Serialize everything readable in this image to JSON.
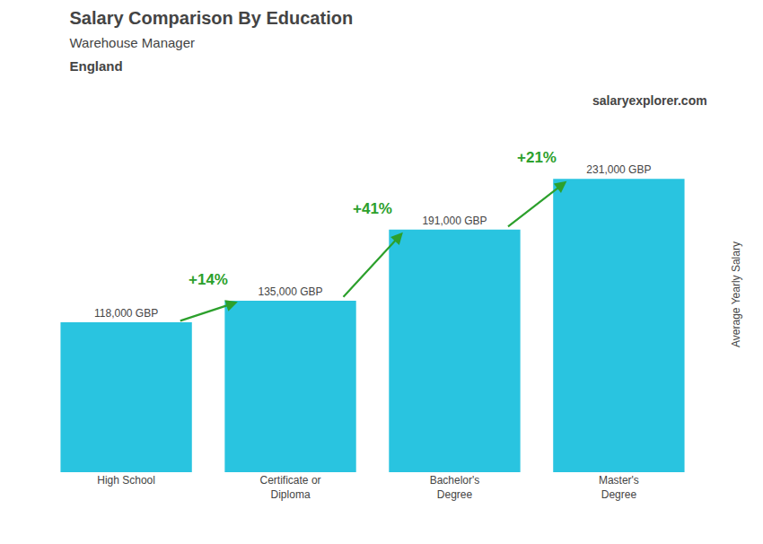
{
  "chart_data": {
    "type": "bar",
    "title": "Salary Comparison By Education",
    "subtitle": "Warehouse Manager",
    "location": "England",
    "website": [
      "salary",
      "explorer",
      ".com"
    ],
    "ylabel": "Average Yearly Salary",
    "categories": [
      "High School",
      "Certificate or\nDiploma",
      "Bachelor's\nDegree",
      "Master's\nDegree"
    ],
    "values": [
      118000,
      135000,
      191000,
      231000
    ],
    "value_labels": [
      "118,000 GBP",
      "135,000 GBP",
      "191,000 GBP",
      "231,000 GBP"
    ],
    "data_labels": true,
    "annotations": [
      "+14%",
      "+41%",
      "+21%"
    ],
    "color": "#29c4e0",
    "ylim": [
      0,
      280000
    ],
    "grid": false,
    "tick_labels": "x"
  }
}
